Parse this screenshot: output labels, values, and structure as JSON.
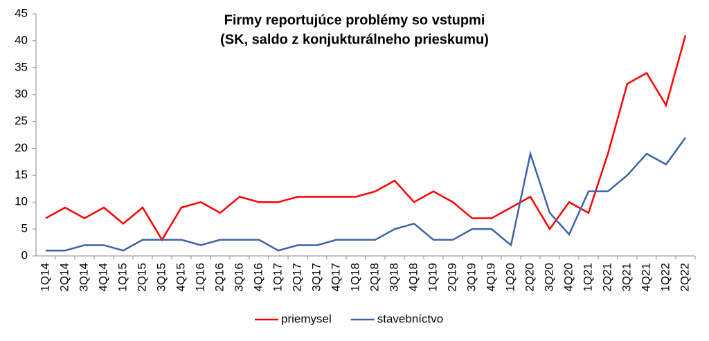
{
  "chart_data": {
    "type": "line",
    "title": [
      "Firmy reportujúce problémy so vstupmi",
      "(SK, saldo z konjukturálneho prieskumu)"
    ],
    "categories": [
      "1Q14",
      "2Q14",
      "3Q14",
      "4Q14",
      "1Q15",
      "2Q15",
      "3Q15",
      "4Q15",
      "1Q16",
      "2Q16",
      "3Q16",
      "4Q16",
      "1Q17",
      "2Q17",
      "3Q17",
      "4Q17",
      "1Q18",
      "2Q18",
      "3Q18",
      "4Q18",
      "1Q19",
      "2Q19",
      "3Q19",
      "4Q19",
      "1Q20",
      "2Q20",
      "3Q20",
      "4Q20",
      "1Q21",
      "2Q21",
      "3Q21",
      "4Q21",
      "1Q22",
      "2Q22"
    ],
    "series": [
      {
        "name": "priemysel",
        "color": "#ff0000",
        "values": [
          7,
          9,
          7,
          9,
          6,
          9,
          3,
          9,
          10,
          8,
          11,
          10,
          10,
          11,
          11,
          11,
          11,
          12,
          14,
          10,
          12,
          10,
          7,
          7,
          9,
          11,
          5,
          10,
          8,
          19,
          32,
          34,
          28,
          41
        ]
      },
      {
        "name": "stavebníctvo",
        "color": "#3c63a8",
        "values": [
          1,
          1,
          2,
          2,
          1,
          3,
          3,
          3,
          2,
          3,
          3,
          3,
          1,
          2,
          2,
          3,
          3,
          3,
          5,
          6,
          3,
          3,
          5,
          5,
          2,
          19,
          8,
          4,
          12,
          12,
          15,
          19,
          17,
          22
        ]
      }
    ],
    "ylim": [
      0,
      45
    ],
    "yticks": [
      0,
      5,
      10,
      15,
      20,
      25,
      30,
      35,
      40,
      45
    ],
    "grid": false,
    "legend": "bottom"
  }
}
